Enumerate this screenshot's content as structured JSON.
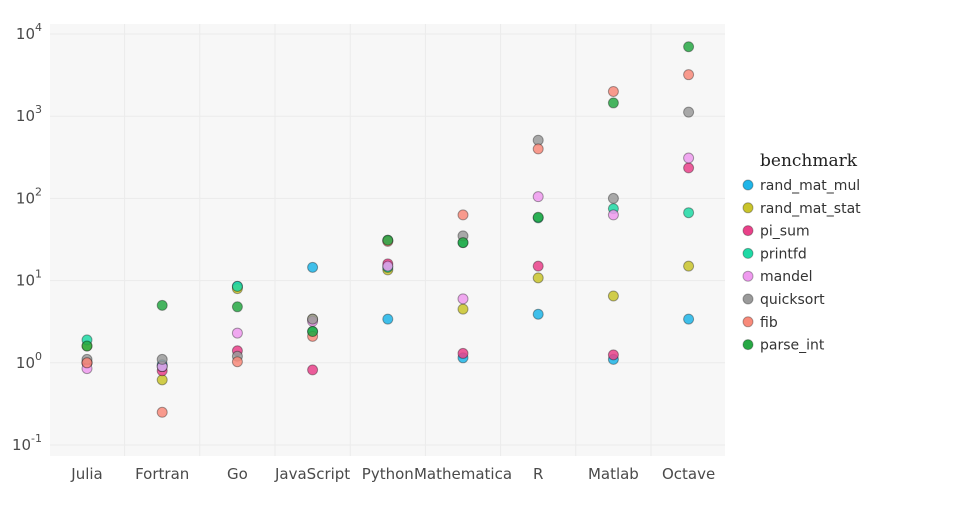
{
  "chart_data": {
    "type": "scatter",
    "categories": [
      "Julia",
      "Fortran",
      "Go",
      "JavaScript",
      "Python",
      "Mathematica",
      "R",
      "Matlab",
      "Octave"
    ],
    "y_scale": "log",
    "ylim": [
      0.1,
      10000
    ],
    "y_ticks": [
      {
        "value": 0.1,
        "base": "10",
        "exp": "-1"
      },
      {
        "value": 1,
        "base": "10",
        "exp": "0"
      },
      {
        "value": 10,
        "base": "10",
        "exp": "1"
      },
      {
        "value": 100,
        "base": "10",
        "exp": "2"
      },
      {
        "value": 1000,
        "base": "10",
        "exp": "3"
      },
      {
        "value": 10000,
        "base": "10",
        "exp": "4"
      }
    ],
    "grid": true,
    "legend": {
      "title": "benchmark",
      "position": "right"
    },
    "series": [
      {
        "name": "rand_mat_mul",
        "color": "#1fb5e8",
        "values": [
          1.0,
          0.95,
          8.5,
          14.5,
          3.4,
          1.15,
          3.9,
          1.1,
          3.4
        ]
      },
      {
        "name": "rand_mat_stat",
        "color": "#c9c42b",
        "values": [
          1.6,
          0.62,
          8.0,
          3.4,
          13.5,
          4.5,
          10.8,
          6.5,
          15.0
        ]
      },
      {
        "name": "pi_sum",
        "color": "#e94189",
        "values": [
          1.0,
          0.8,
          1.4,
          0.82,
          16.0,
          1.3,
          15.0,
          1.25,
          235
        ]
      },
      {
        "name": "printfd",
        "color": "#1fd9a5",
        "values": [
          1.9,
          0.9,
          8.5,
          2.4,
          14.5,
          29,
          58,
          75,
          67
        ]
      },
      {
        "name": "mandel",
        "color": "#ef9aef",
        "values": [
          0.85,
          0.9,
          2.3,
          3.2,
          15.0,
          6.0,
          105,
          63,
          310
        ]
      },
      {
        "name": "quicksort",
        "color": "#9a9a9a",
        "values": [
          1.1,
          1.1,
          1.2,
          3.4,
          31,
          35,
          510,
          100,
          1120
        ]
      },
      {
        "name": "fib",
        "color": "#f88a7a",
        "values": [
          1.0,
          0.25,
          1.03,
          2.1,
          30,
          63,
          400,
          2000,
          3200
        ]
      },
      {
        "name": "parse_int",
        "color": "#27a844",
        "values": [
          1.6,
          5.0,
          4.8,
          2.4,
          31,
          29,
          59,
          1450,
          7000
        ]
      }
    ]
  }
}
